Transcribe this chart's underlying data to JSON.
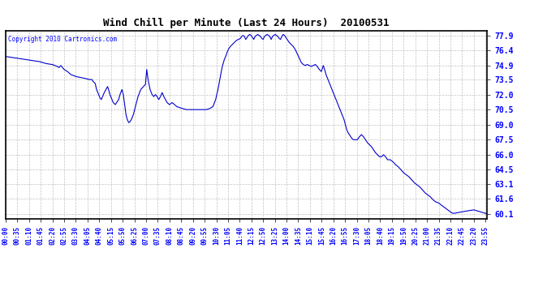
{
  "title": "Wind Chill per Minute (Last 24 Hours)  20100531",
  "copyright": "Copyright 2010 Cartronics.com",
  "line_color": "#0000cc",
  "background_color": "#ffffff",
  "grid_color": "#bbbbbb",
  "ylim": [
    59.6,
    78.4
  ],
  "yticks": [
    60.1,
    61.6,
    63.1,
    64.5,
    66.0,
    67.5,
    69.0,
    70.5,
    72.0,
    73.5,
    74.9,
    76.4,
    77.9
  ],
  "xtick_labels": [
    "00:00",
    "00:35",
    "01:10",
    "01:45",
    "02:20",
    "02:55",
    "03:30",
    "04:05",
    "04:40",
    "05:15",
    "05:50",
    "06:25",
    "07:00",
    "07:35",
    "08:10",
    "08:45",
    "09:20",
    "09:55",
    "10:30",
    "11:05",
    "11:40",
    "12:15",
    "12:50",
    "13:25",
    "14:00",
    "14:35",
    "15:10",
    "15:45",
    "16:20",
    "16:55",
    "17:30",
    "18:05",
    "18:40",
    "19:15",
    "19:50",
    "20:25",
    "21:00",
    "21:35",
    "22:10",
    "22:45",
    "23:20",
    "23:55"
  ],
  "ctrl_points": [
    [
      0,
      75.8
    ],
    [
      20,
      75.7
    ],
    [
      40,
      75.6
    ],
    [
      60,
      75.5
    ],
    [
      80,
      75.4
    ],
    [
      100,
      75.3
    ],
    [
      120,
      75.1
    ],
    [
      140,
      75.0
    ],
    [
      155,
      74.8
    ],
    [
      160,
      74.7
    ],
    [
      165,
      74.9
    ],
    [
      170,
      74.7
    ],
    [
      175,
      74.5
    ],
    [
      185,
      74.3
    ],
    [
      195,
      74.0
    ],
    [
      210,
      73.8
    ],
    [
      225,
      73.7
    ],
    [
      240,
      73.6
    ],
    [
      250,
      73.5
    ],
    [
      258,
      73.5
    ],
    [
      262,
      73.3
    ],
    [
      268,
      73.1
    ],
    [
      272,
      72.5
    ],
    [
      278,
      72.0
    ],
    [
      282,
      71.7
    ],
    [
      286,
      71.5
    ],
    [
      290,
      71.8
    ],
    [
      295,
      72.2
    ],
    [
      300,
      72.5
    ],
    [
      305,
      72.8
    ],
    [
      308,
      72.5
    ],
    [
      312,
      72.0
    ],
    [
      318,
      71.5
    ],
    [
      322,
      71.2
    ],
    [
      328,
      71.0
    ],
    [
      332,
      71.2
    ],
    [
      338,
      71.5
    ],
    [
      342,
      72.0
    ],
    [
      348,
      72.5
    ],
    [
      352,
      72.0
    ],
    [
      356,
      71.0
    ],
    [
      360,
      70.0
    ],
    [
      364,
      69.5
    ],
    [
      368,
      69.2
    ],
    [
      372,
      69.3
    ],
    [
      376,
      69.5
    ],
    [
      382,
      70.0
    ],
    [
      388,
      70.8
    ],
    [
      396,
      71.8
    ],
    [
      404,
      72.5
    ],
    [
      412,
      72.8
    ],
    [
      418,
      73.0
    ],
    [
      422,
      74.5
    ],
    [
      426,
      73.5
    ],
    [
      432,
      72.5
    ],
    [
      438,
      72.0
    ],
    [
      443,
      71.8
    ],
    [
      448,
      72.0
    ],
    [
      453,
      71.8
    ],
    [
      458,
      71.5
    ],
    [
      463,
      71.8
    ],
    [
      468,
      72.2
    ],
    [
      473,
      71.8
    ],
    [
      478,
      71.5
    ],
    [
      483,
      71.2
    ],
    [
      490,
      71.0
    ],
    [
      498,
      71.2
    ],
    [
      505,
      71.0
    ],
    [
      512,
      70.8
    ],
    [
      520,
      70.7
    ],
    [
      530,
      70.6
    ],
    [
      540,
      70.5
    ],
    [
      550,
      70.5
    ],
    [
      560,
      70.5
    ],
    [
      570,
      70.5
    ],
    [
      580,
      70.5
    ],
    [
      590,
      70.5
    ],
    [
      600,
      70.5
    ],
    [
      610,
      70.6
    ],
    [
      620,
      70.8
    ],
    [
      628,
      71.5
    ],
    [
      635,
      72.5
    ],
    [
      642,
      73.8
    ],
    [
      648,
      74.8
    ],
    [
      654,
      75.5
    ],
    [
      658,
      75.8
    ],
    [
      662,
      76.2
    ],
    [
      666,
      76.5
    ],
    [
      672,
      76.8
    ],
    [
      678,
      77.0
    ],
    [
      684,
      77.2
    ],
    [
      690,
      77.4
    ],
    [
      696,
      77.5
    ],
    [
      702,
      77.6
    ],
    [
      706,
      77.8
    ],
    [
      710,
      77.9
    ],
    [
      714,
      77.8
    ],
    [
      718,
      77.5
    ],
    [
      722,
      77.7
    ],
    [
      726,
      77.9
    ],
    [
      730,
      78.0
    ],
    [
      734,
      77.9
    ],
    [
      738,
      77.7
    ],
    [
      742,
      77.5
    ],
    [
      746,
      77.8
    ],
    [
      750,
      77.9
    ],
    [
      754,
      78.0
    ],
    [
      758,
      77.9
    ],
    [
      762,
      77.8
    ],
    [
      766,
      77.6
    ],
    [
      770,
      77.5
    ],
    [
      774,
      77.8
    ],
    [
      778,
      77.9
    ],
    [
      782,
      78.0
    ],
    [
      786,
      77.9
    ],
    [
      790,
      77.8
    ],
    [
      794,
      77.5
    ],
    [
      798,
      77.8
    ],
    [
      802,
      77.9
    ],
    [
      806,
      78.0
    ],
    [
      810,
      77.9
    ],
    [
      814,
      77.8
    ],
    [
      818,
      77.6
    ],
    [
      822,
      77.5
    ],
    [
      826,
      77.8
    ],
    [
      830,
      78.0
    ],
    [
      834,
      77.9
    ],
    [
      838,
      77.7
    ],
    [
      842,
      77.5
    ],
    [
      848,
      77.2
    ],
    [
      854,
      77.0
    ],
    [
      860,
      76.8
    ],
    [
      866,
      76.5
    ],
    [
      870,
      76.2
    ],
    [
      876,
      75.8
    ],
    [
      880,
      75.5
    ],
    [
      884,
      75.2
    ],
    [
      890,
      75.0
    ],
    [
      896,
      74.9
    ],
    [
      902,
      75.0
    ],
    [
      908,
      74.9
    ],
    [
      914,
      74.8
    ],
    [
      920,
      74.9
    ],
    [
      926,
      75.0
    ],
    [
      932,
      74.8
    ],
    [
      938,
      74.5
    ],
    [
      944,
      74.3
    ],
    [
      950,
      74.9
    ],
    [
      954,
      74.5
    ],
    [
      958,
      74.0
    ],
    [
      964,
      73.5
    ],
    [
      970,
      73.0
    ],
    [
      976,
      72.5
    ],
    [
      982,
      72.0
    ],
    [
      988,
      71.5
    ],
    [
      994,
      71.0
    ],
    [
      1000,
      70.5
    ],
    [
      1006,
      70.0
    ],
    [
      1012,
      69.5
    ],
    [
      1016,
      69.0
    ],
    [
      1020,
      68.5
    ],
    [
      1024,
      68.2
    ],
    [
      1028,
      68.0
    ],
    [
      1032,
      67.8
    ],
    [
      1036,
      67.6
    ],
    [
      1040,
      67.5
    ],
    [
      1046,
      67.5
    ],
    [
      1052,
      67.5
    ],
    [
      1058,
      67.8
    ],
    [
      1064,
      68.0
    ],
    [
      1070,
      67.8
    ],
    [
      1076,
      67.5
    ],
    [
      1082,
      67.2
    ],
    [
      1088,
      67.0
    ],
    [
      1094,
      66.8
    ],
    [
      1100,
      66.5
    ],
    [
      1106,
      66.2
    ],
    [
      1112,
      66.0
    ],
    [
      1118,
      65.8
    ],
    [
      1124,
      65.8
    ],
    [
      1130,
      66.0
    ],
    [
      1136,
      65.8
    ],
    [
      1142,
      65.5
    ],
    [
      1150,
      65.5
    ],
    [
      1158,
      65.3
    ],
    [
      1166,
      65.0
    ],
    [
      1174,
      64.8
    ],
    [
      1182,
      64.5
    ],
    [
      1190,
      64.2
    ],
    [
      1198,
      64.0
    ],
    [
      1206,
      63.8
    ],
    [
      1214,
      63.5
    ],
    [
      1222,
      63.2
    ],
    [
      1230,
      63.0
    ],
    [
      1238,
      62.8
    ],
    [
      1246,
      62.5
    ],
    [
      1254,
      62.2
    ],
    [
      1262,
      62.0
    ],
    [
      1270,
      61.8
    ],
    [
      1278,
      61.5
    ],
    [
      1286,
      61.3
    ],
    [
      1294,
      61.2
    ],
    [
      1302,
      61.0
    ],
    [
      1310,
      60.8
    ],
    [
      1318,
      60.6
    ],
    [
      1326,
      60.4
    ],
    [
      1334,
      60.2
    ],
    [
      1340,
      60.15
    ],
    [
      1380,
      60.4
    ],
    [
      1400,
      60.5
    ],
    [
      1410,
      60.4
    ],
    [
      1420,
      60.3
    ],
    [
      1430,
      60.2
    ],
    [
      1440,
      60.1
    ]
  ]
}
